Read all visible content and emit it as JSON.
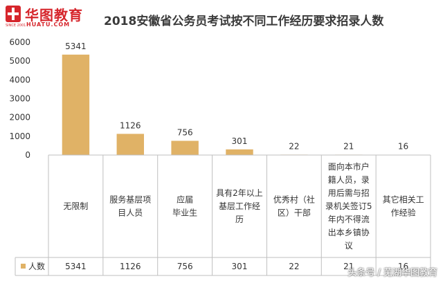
{
  "header": {
    "brand": "华图教育",
    "domain": "HUATU.COM",
    "since": "SINCE 2001",
    "title": "2018安徽省公务员考试按不同工作经历要求招录人数"
  },
  "chart_data": {
    "type": "bar",
    "title": "2018安徽省公务员考试按不同工作经历要求招录人数",
    "categories": [
      [
        "无限制"
      ],
      [
        "服务基层项",
        "目人员"
      ],
      [
        "应届",
        "毕业生"
      ],
      [
        "具有2年以上",
        "基层工作经",
        "历"
      ],
      [
        "优秀村（社",
        "区）干部"
      ],
      [
        "面向本市户",
        "籍人员，录",
        "用后需与招",
        "录机关签订5",
        "年内不得流",
        "出本乡镇协",
        "议"
      ],
      [
        "其它相关工",
        "作经验"
      ]
    ],
    "series": [
      {
        "name": "人数",
        "values": [
          5341,
          1126,
          756,
          301,
          22,
          21,
          16
        ]
      }
    ],
    "ylim": [
      0,
      6000
    ],
    "yticks": [
      0,
      1000,
      2000,
      3000,
      4000,
      5000,
      6000
    ],
    "bar_color": "#e0b266",
    "grid": false,
    "legend": "data-table"
  },
  "watermark": "头条号 / 芜湖华图教育"
}
